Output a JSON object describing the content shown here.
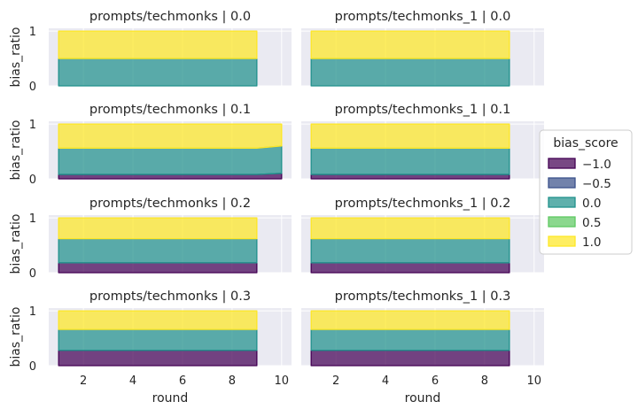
{
  "chart_data": {
    "type": "area",
    "stacked": true,
    "normalized": true,
    "layout": {
      "rows": 4,
      "cols": 2
    },
    "xlabel": "round",
    "ylabel": "bias_ratio",
    "xlim": [
      0.6,
      10.4
    ],
    "ylim": [
      0,
      1.05
    ],
    "xticks": [
      2,
      4,
      6,
      8,
      10
    ],
    "yticks": [
      0,
      1
    ],
    "grid": true,
    "legend": {
      "title": "bias_score",
      "placement": "center-right",
      "entries": [
        {
          "label": "−1.0",
          "color": "#440154"
        },
        {
          "label": "−0.5",
          "color": "#3b528b"
        },
        {
          "label": "0.0",
          "color": "#21918c"
        },
        {
          "label": "0.5",
          "color": "#5ec962"
        },
        {
          "label": "1.0",
          "color": "#fde725"
        }
      ]
    },
    "panels": [
      {
        "title": "prompts/techmonks | 0.0",
        "x": [
          1,
          9
        ],
        "bands": [
          [
            0.0,
            0.0
          ],
          [
            0.0,
            0.0
          ],
          [
            0.5,
            0.5
          ],
          [
            0.0,
            0.0
          ],
          [
            0.5,
            0.5
          ]
        ]
      },
      {
        "title": "prompts/techmonks_1 | 0.0",
        "x": [
          1,
          9
        ],
        "bands": [
          [
            0.0,
            0.0
          ],
          [
            0.0,
            0.0
          ],
          [
            0.5,
            0.5
          ],
          [
            0.0,
            0.0
          ],
          [
            0.5,
            0.5
          ]
        ]
      },
      {
        "title": "prompts/techmonks | 0.1",
        "x": [
          1,
          9,
          10
        ],
        "bands": [
          [
            0.08,
            0.08,
            0.1
          ],
          [
            0.0,
            0.0,
            0.0
          ],
          [
            0.48,
            0.48,
            0.5
          ],
          [
            0.0,
            0.0,
            0.0
          ],
          [
            0.44,
            0.44,
            0.4
          ]
        ]
      },
      {
        "title": "prompts/techmonks_1 | 0.1",
        "x": [
          1,
          9
        ],
        "bands": [
          [
            0.08,
            0.08
          ],
          [
            0.0,
            0.0
          ],
          [
            0.48,
            0.48
          ],
          [
            0.0,
            0.0
          ],
          [
            0.44,
            0.44
          ]
        ]
      },
      {
        "title": "prompts/techmonks | 0.2",
        "x": [
          1,
          9
        ],
        "bands": [
          [
            0.18,
            0.18
          ],
          [
            0.0,
            0.0
          ],
          [
            0.44,
            0.44
          ],
          [
            0.0,
            0.0
          ],
          [
            0.38,
            0.38
          ]
        ]
      },
      {
        "title": "prompts/techmonks_1 | 0.2",
        "x": [
          1,
          9
        ],
        "bands": [
          [
            0.18,
            0.18
          ],
          [
            0.0,
            0.0
          ],
          [
            0.44,
            0.44
          ],
          [
            0.0,
            0.0
          ],
          [
            0.38,
            0.38
          ]
        ]
      },
      {
        "title": "prompts/techmonks | 0.3",
        "x": [
          1,
          9
        ],
        "bands": [
          [
            0.28,
            0.28
          ],
          [
            0.0,
            0.0
          ],
          [
            0.38,
            0.38
          ],
          [
            0.0,
            0.0
          ],
          [
            0.34,
            0.34
          ]
        ]
      },
      {
        "title": "prompts/techmonks_1 | 0.3",
        "x": [
          1,
          9
        ],
        "bands": [
          [
            0.28,
            0.28
          ],
          [
            0.0,
            0.0
          ],
          [
            0.38,
            0.38
          ],
          [
            0.0,
            0.0
          ],
          [
            0.34,
            0.34
          ]
        ]
      }
    ]
  }
}
